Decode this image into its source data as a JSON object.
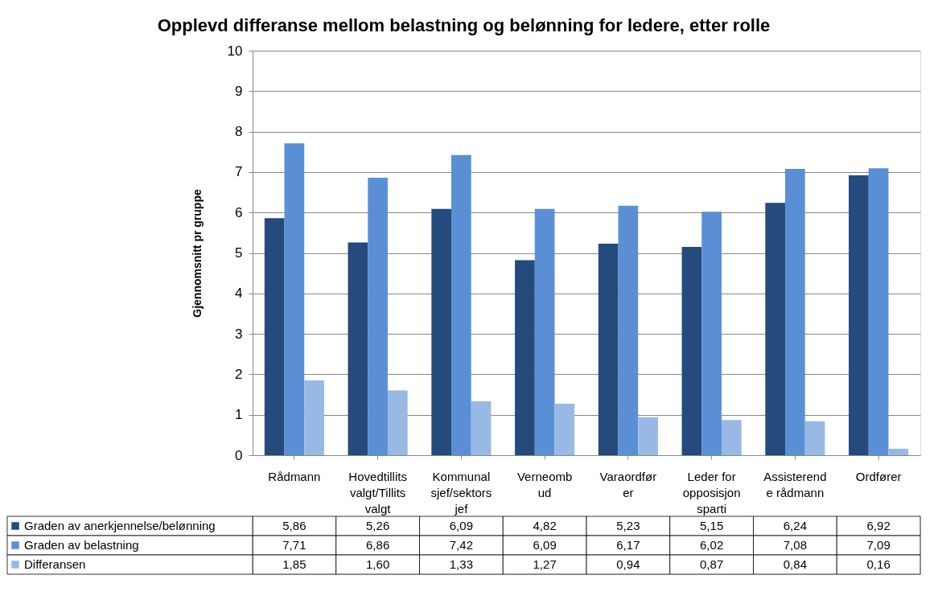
{
  "chart_data": {
    "type": "bar",
    "title": "Opplevd differanse mellom belastning og belønning for ledere, etter rolle",
    "ylabel": "Gjennomsnitt pr gruppe",
    "categories": [
      "Rådmann",
      "Hovedtillits\nvalgt/Tillits\nvalgt",
      "Kommunal\nsjef/sektors\njef",
      "Verneomb\nud",
      "Varaordfør\ner",
      "Leder for\nopposisjon\nsparti",
      "Assisterend\ne rådmann",
      "Ordfører"
    ],
    "series": [
      {
        "name": "Graden av anerkjennelse/belønning",
        "color": "#254a7c",
        "values": [
          5.86,
          5.26,
          6.09,
          4.82,
          5.23,
          5.15,
          6.24,
          6.92
        ],
        "value_labels": [
          "5,86",
          "5,26",
          "6,09",
          "4,82",
          "5,23",
          "5,15",
          "6,24",
          "6,92"
        ]
      },
      {
        "name": "Graden av belastning",
        "color": "#5a8fd6",
        "values": [
          7.71,
          6.86,
          7.42,
          6.09,
          6.17,
          6.02,
          7.08,
          7.09
        ],
        "value_labels": [
          "7,71",
          "6,86",
          "7,42",
          "6,09",
          "6,17",
          "6,02",
          "7,08",
          "7,09"
        ]
      },
      {
        "name": "Differansen",
        "color": "#98b9e4",
        "values": [
          1.85,
          1.6,
          1.33,
          1.27,
          0.94,
          0.87,
          0.84,
          0.16
        ],
        "value_labels": [
          "1,85",
          "1,60",
          "1,33",
          "1,27",
          "0,94",
          "0,87",
          "0,84",
          "0,16"
        ]
      }
    ],
    "ylim": [
      0,
      10
    ],
    "yticks": [
      0,
      1,
      2,
      3,
      4,
      5,
      6,
      7,
      8,
      9,
      10
    ],
    "grid": "y",
    "legend": "bottom"
  }
}
